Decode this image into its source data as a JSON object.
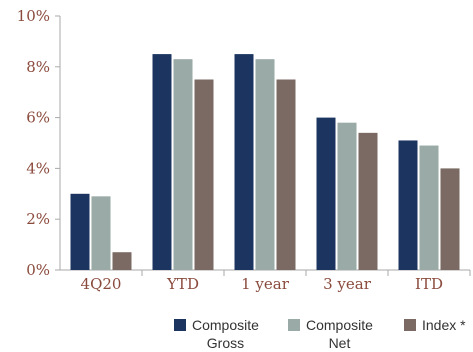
{
  "chart_data": {
    "type": "bar",
    "categories": [
      "4Q20",
      "YTD",
      "1 year",
      "3 year",
      "ITD"
    ],
    "series": [
      {
        "name": "Composite Gross",
        "values": [
          3.0,
          8.5,
          8.5,
          6.0,
          5.1
        ],
        "color": "#1b3560"
      },
      {
        "name": "Composite Net",
        "values": [
          2.9,
          8.3,
          8.3,
          5.8,
          4.9
        ],
        "color": "#9aaaa6"
      },
      {
        "name": "Index *",
        "values": [
          0.7,
          7.5,
          7.5,
          5.4,
          4.0
        ],
        "color": "#7a6a63"
      }
    ],
    "yticks": [
      "0%",
      "2%",
      "4%",
      "6%",
      "8%",
      "10%"
    ],
    "ylim": [
      0,
      10
    ],
    "title": "",
    "xlabel": "",
    "ylabel": "",
    "grid": false,
    "legend_position": "bottom-right"
  },
  "legend": [
    {
      "line1": "Composite",
      "line2": "Gross"
    },
    {
      "line1": "Composite",
      "line2": "Net"
    },
    {
      "line1": "Index *",
      "line2": ""
    }
  ]
}
